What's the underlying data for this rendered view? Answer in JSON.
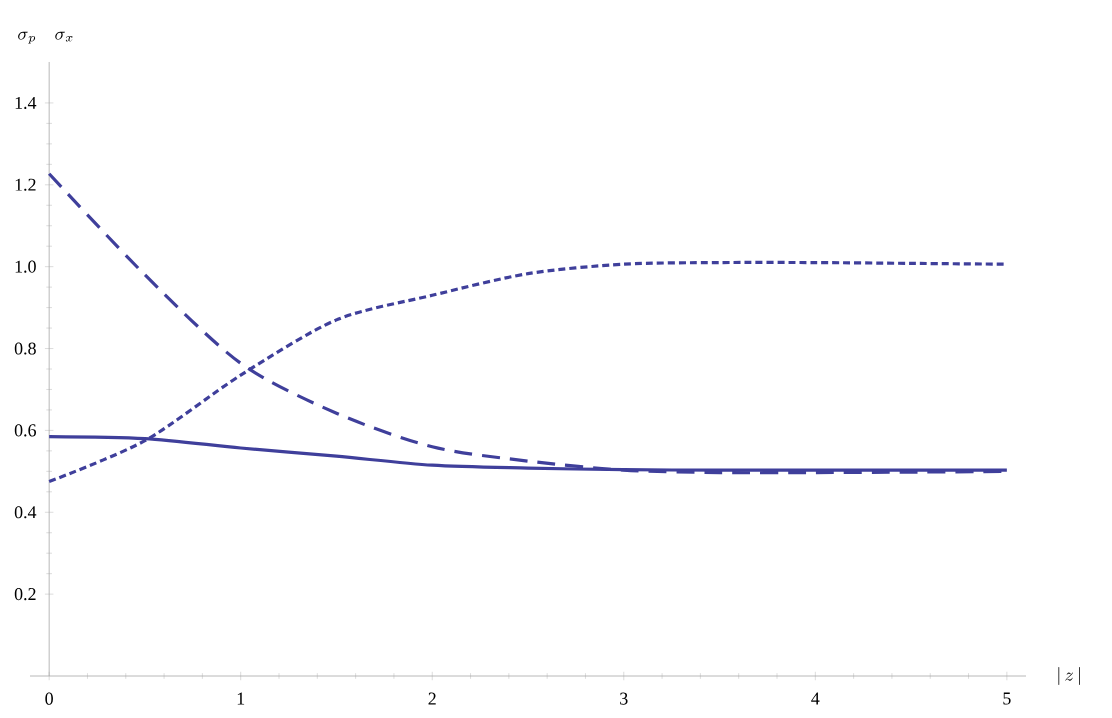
{
  "chart_data": {
    "type": "line",
    "xlabel": "|\\, z \\,|",
    "ylabel": "\\sigma_p \\quad \\sigma_x",
    "x": [
      0,
      0.5,
      1,
      1.5,
      2,
      2.5,
      3,
      3.5,
      4,
      4.5,
      5
    ],
    "series": [
      {
        "color": "#3f3f9b",
        "line_style": "solid",
        "values": [
          0.585,
          0.58,
          0.557,
          0.537,
          0.515,
          0.508,
          0.504,
          0.503,
          0.503,
          0.503,
          0.503
        ]
      },
      {
        "color": "#3f3f9b",
        "line_style": "dashed",
        "values": [
          1.227,
          0.98,
          0.764,
          0.642,
          0.56,
          0.525,
          0.503,
          0.497,
          0.497,
          0.498,
          0.5
        ]
      },
      {
        "color": "#3f3f9b",
        "line_style": "dotted",
        "values": [
          0.475,
          0.575,
          0.735,
          0.87,
          0.93,
          0.983,
          1.006,
          1.01,
          1.01,
          1.008,
          1.006
        ]
      }
    ],
    "xlim": [
      -0.1,
      5.1
    ],
    "ylim": [
      0,
      1.5
    ],
    "xticks": [
      0,
      1,
      2,
      3,
      4,
      5
    ],
    "yticks": [
      0.2,
      0.4,
      0.6,
      0.8,
      {
        "value": 1,
        "label": "1.0"
      },
      1.2,
      1.4
    ],
    "grid": false,
    "marker": "none"
  }
}
